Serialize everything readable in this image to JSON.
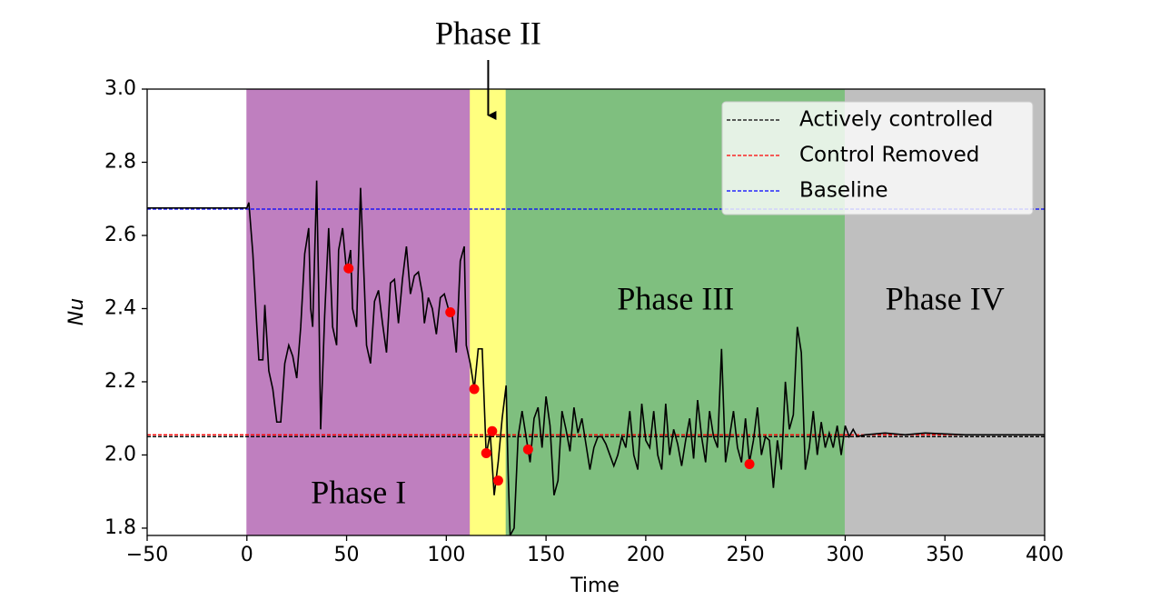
{
  "chart_data": {
    "type": "line",
    "xlabel": "Time",
    "ylabel": "Nu",
    "xlim": [
      -50,
      400
    ],
    "ylim": [
      1.78,
      3.0
    ],
    "xticks": [
      {
        "value": -50,
        "label": "−50"
      },
      0,
      50,
      100,
      150,
      200,
      250,
      300,
      350,
      400
    ],
    "yticks": [
      {
        "value": 1.8,
        "label": "1.8"
      },
      {
        "value": 2.0,
        "label": "2.0"
      },
      {
        "value": 2.2,
        "label": "2.2"
      },
      {
        "value": 2.4,
        "label": "2.4"
      },
      {
        "value": 2.6,
        "label": "2.6"
      },
      {
        "value": 2.8,
        "label": "2.8"
      },
      {
        "value": 3.0,
        "label": "3.0"
      }
    ],
    "regions": [
      {
        "label": "Phase I",
        "start": 0,
        "end": 112,
        "color": "#bf7fbf"
      },
      {
        "label": "Phase II",
        "start": 112,
        "end": 130,
        "color": "#ffff7f"
      },
      {
        "label": "Phase III",
        "start": 130,
        "end": 300,
        "color": "#7fbf7f"
      },
      {
        "label": "Phase IV",
        "start": 300,
        "end": 400,
        "color": "#bfbfbf"
      }
    ],
    "reference_lines": [
      {
        "name": "Actively controlled",
        "color": "#000000",
        "value": 2.05
      },
      {
        "name": "Control Removed",
        "color": "#ff0000",
        "value": 2.055
      },
      {
        "name": "Baseline",
        "color": "#0000ff",
        "value": 2.672
      }
    ],
    "legend": "upper right",
    "series": [
      {
        "color": "#000000",
        "x": [
          -50,
          0,
          1,
          3,
          5,
          6,
          8,
          9,
          11,
          13,
          15,
          17,
          19,
          21,
          23,
          25,
          27,
          29,
          31,
          32,
          33,
          35,
          36,
          37,
          39,
          41,
          43,
          45,
          46,
          48,
          50,
          52,
          53,
          55,
          57,
          59,
          60,
          62,
          64,
          66,
          68,
          70,
          72,
          74,
          76,
          78,
          80,
          82,
          84,
          86,
          88,
          89,
          91,
          93,
          95,
          97,
          99,
          101,
          103,
          105,
          107,
          109,
          110,
          112,
          114,
          116,
          118,
          120,
          122,
          124,
          126,
          128,
          130,
          131,
          132,
          134,
          136,
          138,
          140,
          142,
          144,
          146,
          148,
          150,
          152,
          154,
          156,
          158,
          160,
          162,
          164,
          166,
          168,
          170,
          172,
          174,
          176,
          178,
          180,
          182,
          184,
          186,
          188,
          190,
          192,
          194,
          196,
          198,
          200,
          202,
          204,
          206,
          208,
          210,
          212,
          214,
          216,
          218,
          220,
          222,
          224,
          226,
          228,
          230,
          232,
          234,
          236,
          238,
          240,
          242,
          244,
          246,
          248,
          250,
          252,
          254,
          256,
          258,
          260,
          262,
          264,
          266,
          268,
          270,
          272,
          274,
          276,
          278,
          280,
          282,
          284,
          286,
          288,
          290,
          292,
          294,
          296,
          298,
          300,
          302,
          304,
          306,
          310,
          320,
          330,
          340,
          360,
          400
        ],
        "values": [
          2.675,
          2.675,
          2.69,
          2.55,
          2.35,
          2.26,
          2.26,
          2.41,
          2.23,
          2.18,
          2.09,
          2.09,
          2.25,
          2.3,
          2.27,
          2.21,
          2.35,
          2.55,
          2.62,
          2.4,
          2.35,
          2.75,
          2.45,
          2.07,
          2.38,
          2.62,
          2.35,
          2.3,
          2.56,
          2.62,
          2.5,
          2.56,
          2.4,
          2.35,
          2.73,
          2.45,
          2.3,
          2.25,
          2.42,
          2.45,
          2.36,
          2.28,
          2.47,
          2.48,
          2.36,
          2.48,
          2.57,
          2.44,
          2.49,
          2.5,
          2.44,
          2.36,
          2.43,
          2.4,
          2.33,
          2.43,
          2.44,
          2.4,
          2.38,
          2.28,
          2.53,
          2.57,
          2.3,
          2.25,
          2.18,
          2.29,
          2.29,
          2.0,
          2.06,
          1.89,
          1.98,
          2.1,
          2.19,
          1.95,
          1.78,
          1.8,
          2.05,
          2.12,
          2.05,
          1.98,
          2.1,
          2.13,
          2.02,
          2.16,
          2.08,
          1.89,
          1.93,
          2.12,
          2.07,
          2.01,
          2.13,
          2.06,
          2.1,
          2.03,
          1.96,
          2.02,
          2.05,
          2.05,
          2.03,
          2.0,
          1.97,
          2.0,
          2.05,
          2.02,
          2.12,
          2.0,
          1.96,
          2.14,
          2.04,
          2.02,
          2.12,
          2.0,
          1.96,
          2.14,
          2.0,
          2.07,
          2.03,
          1.97,
          2.04,
          2.1,
          1.99,
          2.15,
          2.05,
          1.98,
          2.12,
          2.05,
          2.02,
          2.29,
          1.98,
          2.05,
          2.12,
          2.02,
          1.98,
          2.1,
          1.98,
          2.04,
          2.13,
          2.0,
          2.05,
          2.04,
          1.91,
          2.04,
          1.96,
          2.2,
          2.07,
          2.11,
          2.35,
          2.28,
          1.96,
          2.02,
          2.12,
          2.0,
          2.09,
          2.02,
          2.06,
          2.02,
          2.08,
          2.0,
          2.08,
          2.05,
          2.07,
          2.05,
          2.055,
          2.06,
          2.055,
          2.06,
          2.055,
          2.055
        ]
      }
    ],
    "markers": {
      "color": "#ff0000",
      "x": [
        51,
        102,
        114,
        120,
        123,
        126,
        141,
        252
      ],
      "values": [
        2.51,
        2.39,
        2.18,
        2.005,
        2.065,
        1.93,
        2.015,
        1.975
      ]
    }
  }
}
